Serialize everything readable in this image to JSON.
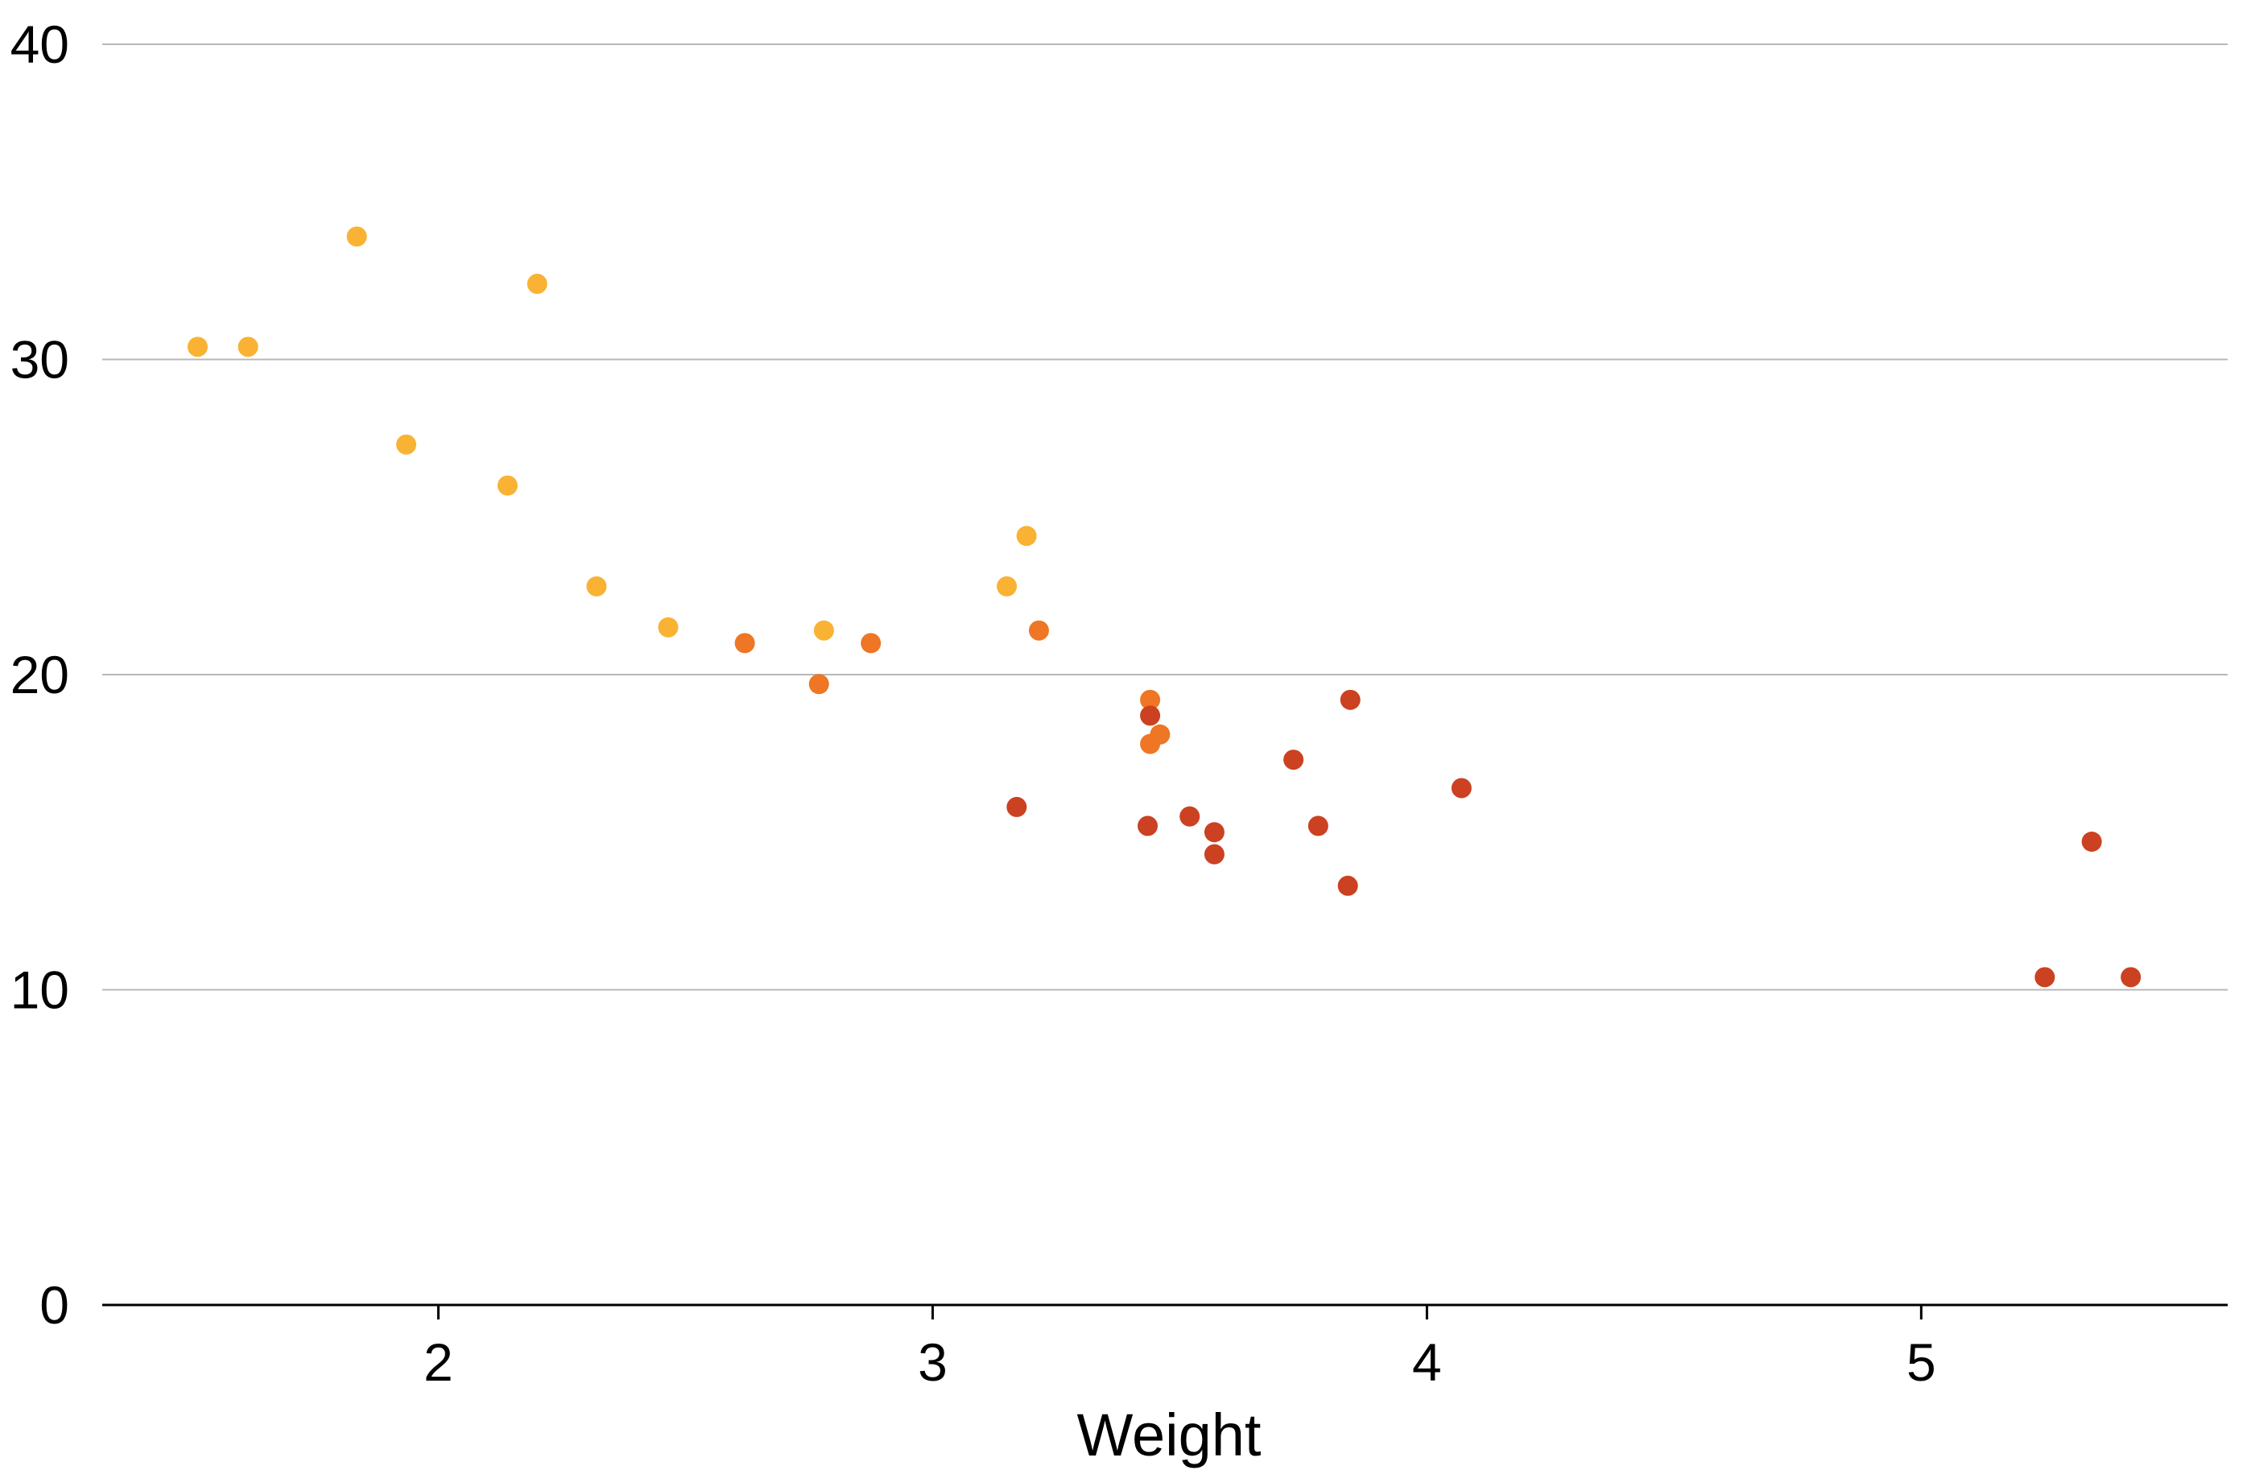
{
  "chart_data": {
    "type": "scatter",
    "xlabel": "Weight",
    "ylabel": "",
    "xlim": [
      1.32,
      5.62
    ],
    "ylim": [
      0,
      40
    ],
    "x_ticks": [
      2,
      3,
      4,
      5
    ],
    "y_ticks": [
      0,
      10,
      20,
      30,
      40
    ],
    "grid": "horizontal",
    "legend": "none",
    "series": [
      {
        "color": "#f9b233",
        "points": [
          [
            1.513,
            30.4
          ],
          [
            1.615,
            30.4
          ],
          [
            1.835,
            33.9
          ],
          [
            1.935,
            27.3
          ],
          [
            2.14,
            26.0
          ],
          [
            2.2,
            32.4
          ],
          [
            2.32,
            22.8
          ],
          [
            2.465,
            21.5
          ],
          [
            2.78,
            21.4
          ],
          [
            3.15,
            22.8
          ],
          [
            3.19,
            24.4
          ]
        ]
      },
      {
        "color": "#ee7624",
        "points": [
          [
            2.62,
            21.0
          ],
          [
            2.77,
            19.7
          ],
          [
            2.875,
            21.0
          ],
          [
            3.215,
            21.4
          ],
          [
            3.44,
            19.2
          ],
          [
            3.44,
            17.8
          ],
          [
            3.46,
            18.1
          ]
        ]
      },
      {
        "color": "#cb4121",
        "points": [
          [
            3.17,
            15.8
          ],
          [
            3.435,
            15.2
          ],
          [
            3.44,
            18.7
          ],
          [
            3.52,
            15.5
          ],
          [
            3.57,
            15.0
          ],
          [
            3.57,
            14.3
          ],
          [
            3.73,
            17.3
          ],
          [
            3.78,
            15.2
          ],
          [
            3.84,
            13.3
          ],
          [
            3.845,
            19.2
          ],
          [
            4.07,
            16.4
          ],
          [
            5.25,
            10.4
          ],
          [
            5.345,
            14.7
          ],
          [
            5.424,
            10.4
          ]
        ]
      }
    ]
  }
}
